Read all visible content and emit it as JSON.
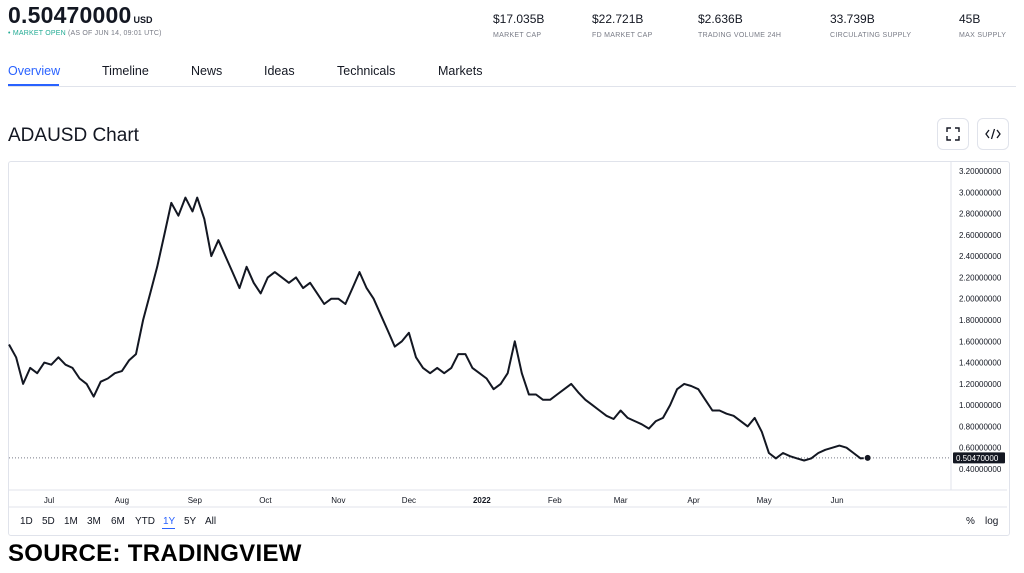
{
  "header": {
    "price": "0.50470000",
    "currency": "USD",
    "market_status": "MARKET OPEN",
    "as_of": "(AS OF JUN 14, 09:01 UTC)",
    "stats": [
      {
        "value": "$17.035B",
        "label": "MARKET CAP"
      },
      {
        "value": "$22.721B",
        "label": "FD MARKET CAP"
      },
      {
        "value": "$2.636B",
        "label": "TRADING VOLUME 24H"
      },
      {
        "value": "33.739B",
        "label": "CIRCULATING SUPPLY"
      },
      {
        "value": "45B",
        "label": "MAX SUPPLY"
      }
    ]
  },
  "tabs": [
    "Overview",
    "Timeline",
    "News",
    "Ideas",
    "Technicals",
    "Markets"
  ],
  "active_tab": "Overview",
  "chart_title": "ADAUSD Chart",
  "icons": {
    "fullscreen": "fullscreen-icon",
    "embed": "code-embed-icon"
  },
  "range_buttons": [
    "1D",
    "5D",
    "1M",
    "3M",
    "6M",
    "YTD",
    "1Y",
    "5Y",
    "All"
  ],
  "active_range": "1Y",
  "scale_buttons": [
    "%",
    "log"
  ],
  "source_caption": "SOURCE: TRADINGVIEW",
  "colors": {
    "line": "#131722",
    "accent": "#2962ff",
    "market_open": "#22ab94",
    "price_tag_bg": "#131722"
  },
  "chart_data": {
    "type": "line",
    "title": "ADAUSD Chart",
    "xlabel": "",
    "ylabel": "",
    "grid": false,
    "ylim": [
      0.4,
      3.2
    ],
    "y_ticks": [
      "3.20000000",
      "3.00000000",
      "2.80000000",
      "2.60000000",
      "2.40000000",
      "2.20000000",
      "2.00000000",
      "1.80000000",
      "1.60000000",
      "1.40000000",
      "1.20000000",
      "1.00000000",
      "0.80000000",
      "0.60000000",
      "0.40000000"
    ],
    "y_tick_values": [
      3.2,
      3.0,
      2.8,
      2.6,
      2.4,
      2.2,
      2.0,
      1.8,
      1.6,
      1.4,
      1.2,
      1.0,
      0.8,
      0.6,
      0.4
    ],
    "x_ticks": [
      "Jul",
      "Aug",
      "Sep",
      "Oct",
      "Nov",
      "Dec",
      "2022",
      "Feb",
      "Mar",
      "Apr",
      "May",
      "Jun"
    ],
    "x_tick_dates": [
      "2021-07-01",
      "2021-08-01",
      "2021-09-01",
      "2021-10-01",
      "2021-11-01",
      "2021-12-01",
      "2022-01-01",
      "2022-02-01",
      "2022-03-01",
      "2022-04-01",
      "2022-05-01",
      "2022-06-01"
    ],
    "last_price_label": "0.50470000",
    "last_price": 0.5047,
    "series": [
      {
        "x": [
          "2021-06-14",
          "2021-06-17",
          "2021-06-20",
          "2021-06-23",
          "2021-06-26",
          "2021-06-29",
          "2021-07-02",
          "2021-07-05",
          "2021-07-08",
          "2021-07-11",
          "2021-07-14",
          "2021-07-17",
          "2021-07-20",
          "2021-07-23",
          "2021-07-26",
          "2021-07-29",
          "2021-08-01",
          "2021-08-04",
          "2021-08-07",
          "2021-08-10",
          "2021-08-13",
          "2021-08-16",
          "2021-08-19",
          "2021-08-22",
          "2021-08-25",
          "2021-08-28",
          "2021-08-31",
          "2021-09-02",
          "2021-09-05",
          "2021-09-08",
          "2021-09-11",
          "2021-09-14",
          "2021-09-17",
          "2021-09-20",
          "2021-09-23",
          "2021-09-26",
          "2021-09-29",
          "2021-10-02",
          "2021-10-05",
          "2021-10-08",
          "2021-10-11",
          "2021-10-14",
          "2021-10-17",
          "2021-10-20",
          "2021-10-23",
          "2021-10-26",
          "2021-10-29",
          "2021-11-01",
          "2021-11-04",
          "2021-11-07",
          "2021-11-10",
          "2021-11-13",
          "2021-11-16",
          "2021-11-19",
          "2021-11-22",
          "2021-11-25",
          "2021-11-28",
          "2021-12-01",
          "2021-12-04",
          "2021-12-07",
          "2021-12-10",
          "2021-12-13",
          "2021-12-16",
          "2021-12-19",
          "2021-12-22",
          "2021-12-25",
          "2021-12-28",
          "2021-12-31",
          "2022-01-03",
          "2022-01-06",
          "2022-01-09",
          "2022-01-12",
          "2022-01-15",
          "2022-01-18",
          "2022-01-21",
          "2022-01-24",
          "2022-01-27",
          "2022-01-30",
          "2022-02-02",
          "2022-02-05",
          "2022-02-08",
          "2022-02-11",
          "2022-02-14",
          "2022-02-17",
          "2022-02-20",
          "2022-02-23",
          "2022-02-26",
          "2022-03-01",
          "2022-03-04",
          "2022-03-07",
          "2022-03-10",
          "2022-03-13",
          "2022-03-16",
          "2022-03-19",
          "2022-03-22",
          "2022-03-25",
          "2022-03-28",
          "2022-03-31",
          "2022-04-03",
          "2022-04-06",
          "2022-04-09",
          "2022-04-12",
          "2022-04-15",
          "2022-04-18",
          "2022-04-21",
          "2022-04-24",
          "2022-04-27",
          "2022-04-30",
          "2022-05-03",
          "2022-05-06",
          "2022-05-09",
          "2022-05-12",
          "2022-05-15",
          "2022-05-18",
          "2022-05-21",
          "2022-05-24",
          "2022-05-27",
          "2022-05-30",
          "2022-06-02",
          "2022-06-05",
          "2022-06-08",
          "2022-06-11",
          "2022-06-14"
        ],
        "y": [
          1.57,
          1.45,
          1.2,
          1.35,
          1.3,
          1.4,
          1.38,
          1.45,
          1.38,
          1.35,
          1.25,
          1.2,
          1.08,
          1.22,
          1.25,
          1.3,
          1.32,
          1.42,
          1.48,
          1.8,
          2.05,
          2.3,
          2.6,
          2.9,
          2.78,
          2.95,
          2.82,
          2.95,
          2.75,
          2.4,
          2.55,
          2.4,
          2.25,
          2.1,
          2.3,
          2.15,
          2.05,
          2.2,
          2.25,
          2.2,
          2.15,
          2.2,
          2.1,
          2.15,
          2.05,
          1.95,
          2.0,
          2.0,
          1.95,
          2.1,
          2.25,
          2.1,
          2.0,
          1.85,
          1.7,
          1.55,
          1.6,
          1.68,
          1.45,
          1.35,
          1.3,
          1.35,
          1.3,
          1.35,
          1.48,
          1.48,
          1.35,
          1.3,
          1.25,
          1.15,
          1.2,
          1.3,
          1.6,
          1.3,
          1.1,
          1.1,
          1.05,
          1.05,
          1.1,
          1.15,
          1.2,
          1.12,
          1.05,
          1.0,
          0.95,
          0.9,
          0.87,
          0.95,
          0.88,
          0.85,
          0.82,
          0.78,
          0.85,
          0.88,
          1.0,
          1.15,
          1.2,
          1.18,
          1.15,
          1.05,
          0.95,
          0.95,
          0.92,
          0.9,
          0.85,
          0.8,
          0.88,
          0.75,
          0.55,
          0.5,
          0.55,
          0.52,
          0.5,
          0.48,
          0.5,
          0.55,
          0.58,
          0.6,
          0.62,
          0.6,
          0.55,
          0.5,
          0.5047
        ]
      }
    ]
  }
}
